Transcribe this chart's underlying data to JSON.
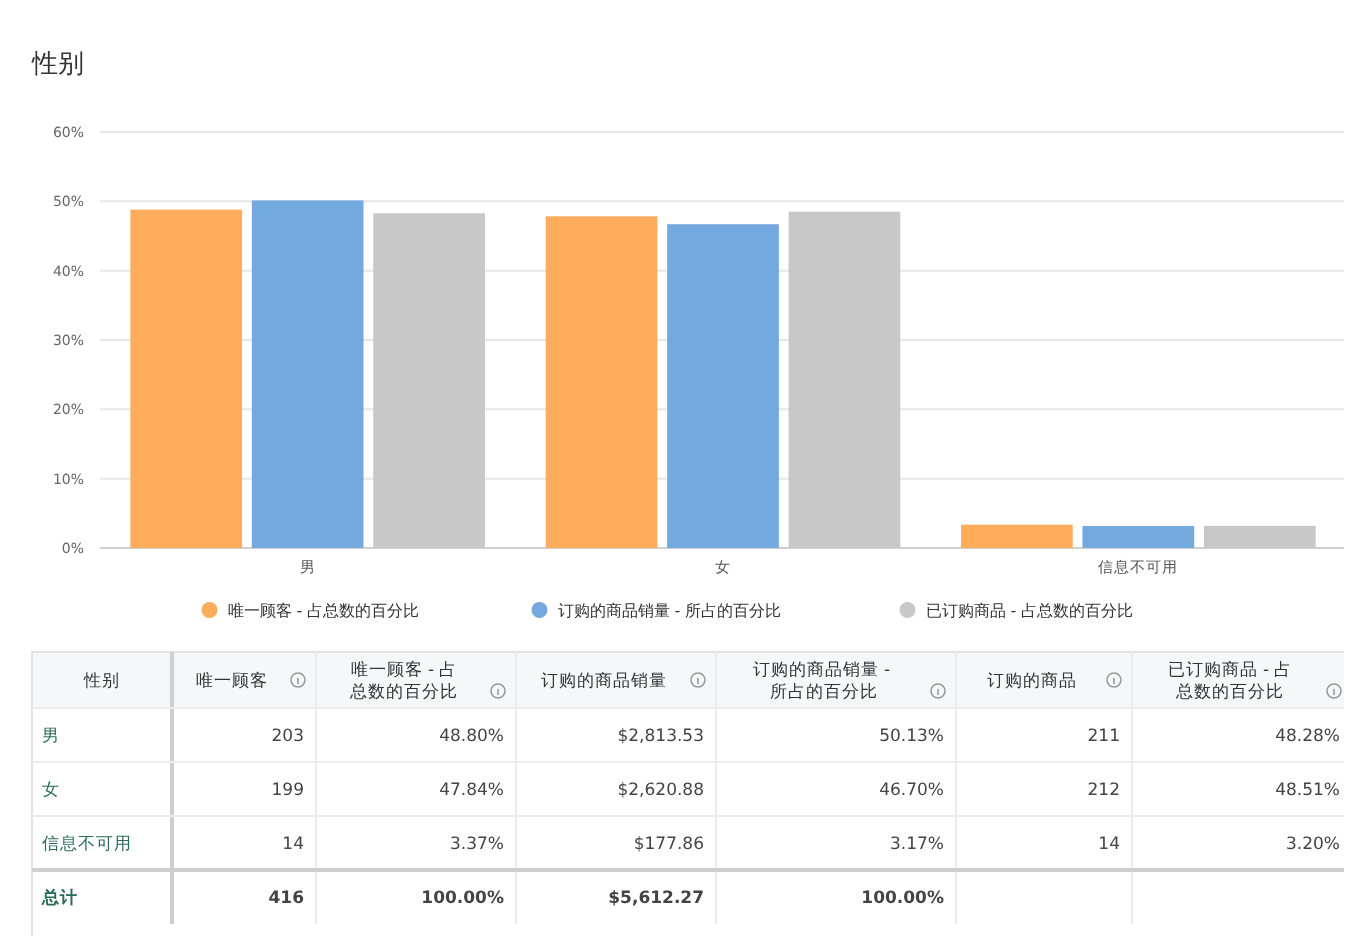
{
  "chart_data": [
    {
      "type": "bar",
      "title": "性别",
      "categories": [
        "男",
        "女",
        "信息不可用"
      ],
      "series": [
        {
          "name": "唯一顾客 - 占总数的百分比",
          "color": "#ffad5c",
          "values": [
            48.8,
            47.84,
            3.37
          ]
        },
        {
          "name": "订购的商品销量 - 所占的百分比",
          "color": "#74a9e0",
          "values": [
            50.13,
            46.7,
            3.17
          ]
        },
        {
          "name": "已订购商品 - 占总数的百分比",
          "color": "#c8c8c8",
          "values": [
            48.28,
            48.51,
            3.2
          ]
        }
      ],
      "ylim": [
        0,
        60
      ],
      "yticks": [
        {
          "value": 0,
          "label": "0%"
        },
        {
          "value": 10,
          "label": "10%"
        },
        {
          "value": 20,
          "label": "20%"
        },
        {
          "value": 30,
          "label": "30%"
        },
        {
          "value": 40,
          "label": "40%"
        },
        {
          "value": 50,
          "label": "50%"
        },
        {
          "value": 60,
          "label": "60%"
        }
      ],
      "grid": "y",
      "legend": "bottom"
    },
    {
      "type": "other",
      "categories": [
        "性别",
        "唯一顾客",
        "唯一顾客 - 占总数的百分比",
        "订购的商品销量",
        "订购的商品销量 - 所占的百分比",
        "订购的商品",
        "已订购商品 - 占总数的百分比"
      ],
      "cell_labels": [
        [
          "男",
          "203",
          "48.80%",
          "$2,813.53",
          "50.13%",
          "211",
          "48.28%"
        ],
        [
          "女",
          "199",
          "47.84%",
          "$2,620.88",
          "46.70%",
          "212",
          "48.51%"
        ],
        [
          "信息不可用",
          "14",
          "3.37%",
          "$177.86",
          "3.17%",
          "14",
          "3.20%"
        ],
        [
          "总计",
          "416",
          "100.00%",
          "$5,612.27",
          "100.00%",
          null,
          null
        ]
      ]
    }
  ]
}
